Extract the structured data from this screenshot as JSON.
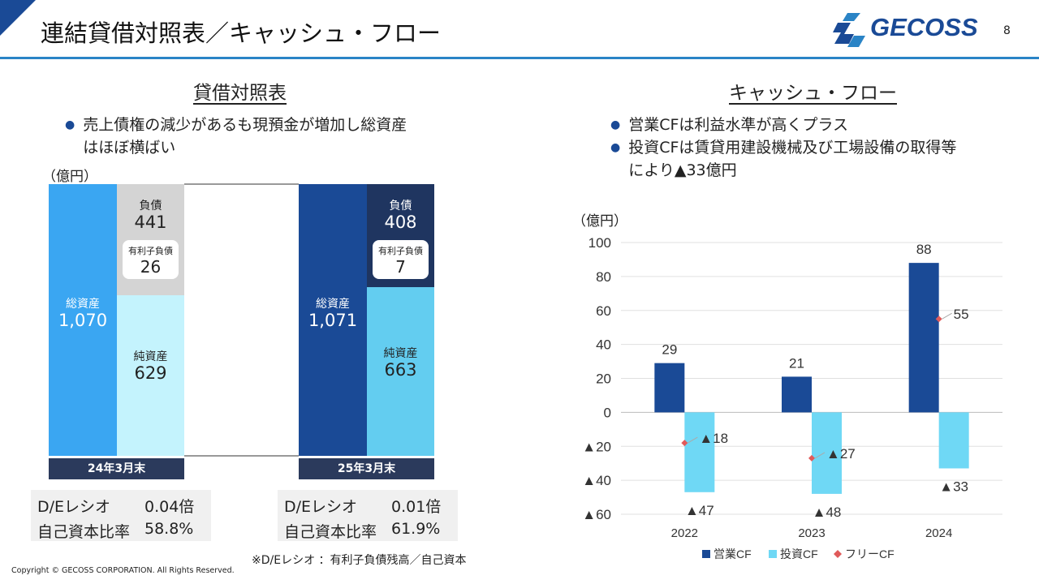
{
  "header": {
    "title": "連結貸借対照表／キャッシュ・フロー",
    "logo": "GECOSS",
    "page": "8"
  },
  "bs": {
    "title": "貸借対照表",
    "bullets": [
      "売上債権の減少があるも現預金が増加し総資産",
      "はほぼ横ばい"
    ],
    "unit": "（億円）",
    "periods": [
      {
        "date": "24年3月末",
        "assets_label": "総資産",
        "assets": "1,070",
        "liab_label": "負債",
        "liab": "441",
        "debt_label": "有利子負債",
        "debt": "26",
        "equity_label": "純資産",
        "equity": "629",
        "de_label": "D/Eレシオ",
        "de": "0.04倍",
        "eq_ratio_label": "自己資本比率",
        "eq_ratio": "58.8%"
      },
      {
        "date": "25年3月末",
        "assets_label": "総資産",
        "assets": "1,071",
        "liab_label": "負債",
        "liab": "408",
        "debt_label": "有利子負債",
        "debt": "7",
        "equity_label": "純資産",
        "equity": "663",
        "de_label": "D/Eレシオ",
        "de": "0.01倍",
        "eq_ratio_label": "自己資本比率",
        "eq_ratio": "61.9%"
      }
    ],
    "note": "※D/Eレシオ ：有利子負債残高／自己資本",
    "colors": {
      "assets1": "#3aa6f2",
      "liab1": "#d4d4d4",
      "equity1": "#c4f3fd",
      "assets2": "#1a4a96",
      "liab2": "#1f3560",
      "equity2": "#63cdf0"
    }
  },
  "cf": {
    "title": "キャッシュ・フロー",
    "bullets": [
      "営業CFは利益水準が高くプラス",
      "投資CFは賃貸用建設機械及び工場設備の取得等",
      "により▲33億円"
    ],
    "unit": "（億円）"
  },
  "chart_data": {
    "type": "bar",
    "categories": [
      "2022",
      "2023",
      "2024"
    ],
    "series": [
      {
        "name": "営業CF",
        "values": [
          29,
          21,
          88
        ],
        "labels": [
          "29",
          "21",
          "88"
        ],
        "color": "#1a4a96"
      },
      {
        "name": "投資CF",
        "values": [
          -47,
          -48,
          -33
        ],
        "labels": [
          "▲47",
          "▲48",
          "▲33"
        ],
        "color": "#6fd8f5"
      },
      {
        "name": "フリーCF",
        "values": [
          -18,
          -27,
          55
        ],
        "labels": [
          "▲18",
          "▲27",
          "55"
        ],
        "color": "#e05a5a"
      }
    ],
    "ylim": [
      -60,
      100
    ],
    "yticks": [
      100,
      80,
      60,
      40,
      20,
      0,
      -20,
      -40,
      -60
    ],
    "ytick_labels": [
      "100",
      "80",
      "60",
      "40",
      "20",
      "0",
      "▲20",
      "▲40",
      "▲60"
    ],
    "legend": "bottom",
    "grid": true
  },
  "footer": {
    "copyright": "Copyright © GECOSS CORPORATION. All Rights Reserved."
  }
}
